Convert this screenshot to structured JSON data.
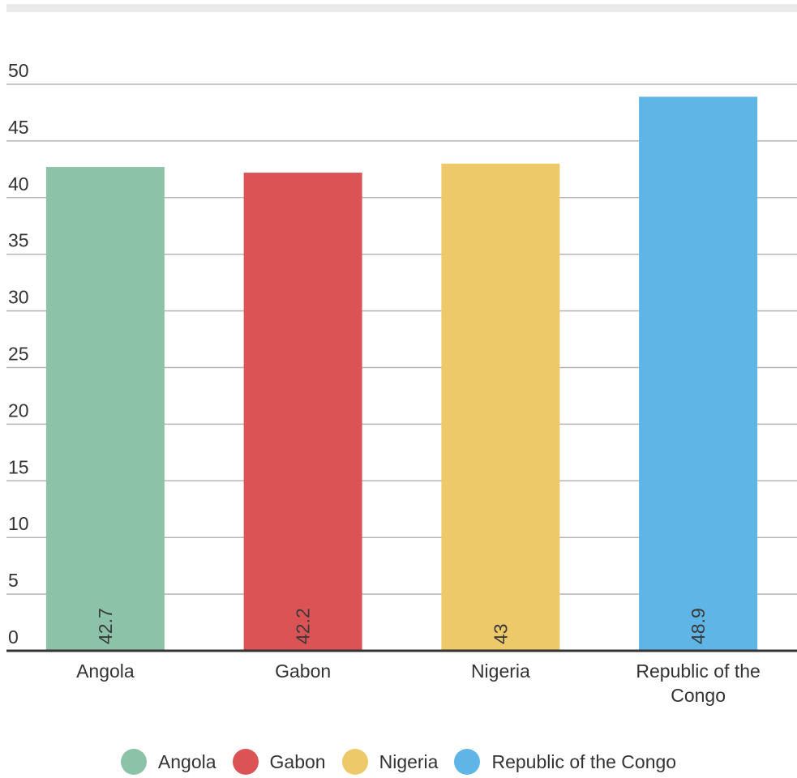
{
  "chart_data": {
    "type": "bar",
    "title": "",
    "xlabel": "",
    "ylabel": "",
    "categories": [
      "Angola",
      "Gabon",
      "Nigeria",
      "Republic of the Congo"
    ],
    "category_lines": [
      [
        "Angola"
      ],
      [
        "Gabon"
      ],
      [
        "Nigeria"
      ],
      [
        "Republic of the",
        "Congo"
      ]
    ],
    "values": [
      42.7,
      42.2,
      43,
      48.9
    ],
    "data_labels": [
      "42.7",
      "42.2",
      "43",
      "48.9"
    ],
    "colors": [
      "#8cc3a8",
      "#dc5356",
      "#edc96a",
      "#5fb5e6"
    ],
    "ylim": [
      0,
      50
    ],
    "yticks": [
      0,
      5,
      10,
      15,
      20,
      25,
      30,
      35,
      40,
      45,
      50
    ],
    "grid": true,
    "legend_position": "bottom"
  },
  "legend": {
    "items": [
      {
        "label": "Angola",
        "color": "#8cc3a8"
      },
      {
        "label": "Gabon",
        "color": "#dc5356"
      },
      {
        "label": "Nigeria",
        "color": "#edc96a"
      },
      {
        "label": "Republic of the Congo",
        "color": "#5fb5e6"
      }
    ]
  }
}
